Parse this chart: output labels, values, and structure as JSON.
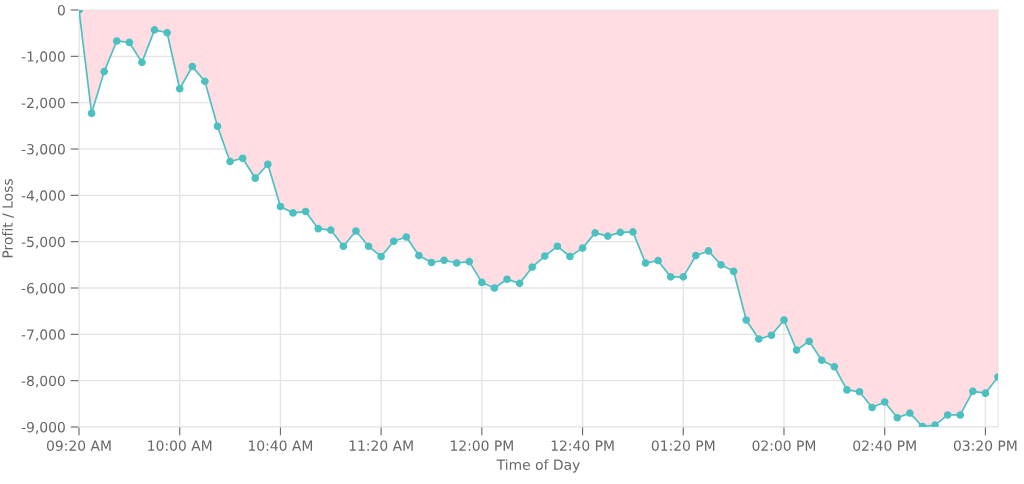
{
  "chart_data": {
    "type": "area",
    "xlabel": "Time of Day",
    "ylabel": "Profit / Loss",
    "x": [
      9.3333,
      9.4167,
      9.5,
      9.5833,
      9.6667,
      9.75,
      9.8333,
      9.9167,
      10,
      10.0833,
      10.1667,
      10.25,
      10.3333,
      10.4167,
      10.5,
      10.5833,
      10.6667,
      10.75,
      10.8333,
      10.9167,
      11,
      11.0833,
      11.1667,
      11.25,
      11.3333,
      11.4167,
      11.5,
      11.5833,
      11.6667,
      11.75,
      11.8333,
      11.9167,
      12,
      12.0833,
      12.1667,
      12.25,
      12.3333,
      12.4167,
      12.5,
      12.5833,
      12.6667,
      12.75,
      12.8333,
      12.9167,
      13,
      13.0833,
      13.1667,
      13.25,
      13.3333,
      13.4167,
      13.5,
      13.5833,
      13.6667,
      13.75,
      13.8333,
      13.9167,
      14,
      14.0833,
      14.1667,
      14.25,
      14.3333,
      14.4167,
      14.5,
      14.5833,
      14.6667,
      14.75,
      14.8333,
      14.9167,
      15,
      15.0833,
      15.1667,
      15.25,
      15.3333,
      15.4167
    ],
    "series": [
      {
        "color": "#4bc0c0",
        "values": [
          0,
          -2230,
          -1330,
          -670,
          -700,
          -1130,
          -430,
          -490,
          -1700,
          -1220,
          -1540,
          -2510,
          -3270,
          -3200,
          -3630,
          -3330,
          -4240,
          -4380,
          -4350,
          -4720,
          -4750,
          -5100,
          -4770,
          -5100,
          -5320,
          -4990,
          -4900,
          -5300,
          -5450,
          -5400,
          -5460,
          -5430,
          -5880,
          -6000,
          -5810,
          -5900,
          -5550,
          -5310,
          -5100,
          -5320,
          -5140,
          -4810,
          -4880,
          -4800,
          -4790,
          -5460,
          -5410,
          -5760,
          -5760,
          -5300,
          -5200,
          -5500,
          -5640,
          -6690,
          -7100,
          -7020,
          -6690,
          -7340,
          -7150,
          -7560,
          -7700,
          -8200,
          -8240,
          -8580,
          -8460,
          -8800,
          -8700,
          -8990,
          -8960,
          -8740,
          -8740,
          -8230,
          -8270,
          -7920
        ]
      }
    ],
    "xlim": [
      9.3333,
      15.4167
    ],
    "xticks": [
      {
        "value": 9.3333,
        "label": "09:20 AM"
      },
      {
        "value": 10,
        "label": "10:00 AM"
      },
      {
        "value": 10.6667,
        "label": "10:40 AM"
      },
      {
        "value": 11.3333,
        "label": "11:20 AM"
      },
      {
        "value": 12,
        "label": "12:00 PM"
      },
      {
        "value": 12.6667,
        "label": "12:40 PM"
      },
      {
        "value": 13.3333,
        "label": "01:20 PM"
      },
      {
        "value": 14,
        "label": "02:00 PM"
      },
      {
        "value": 14.6667,
        "label": "02:40 PM"
      },
      {
        "value": 15.3333,
        "label": "03:20 PM"
      }
    ],
    "ylim": [
      -9000,
      0
    ],
    "yticks": [
      0,
      {
        "value": -1000,
        "label": "-1,000"
      },
      {
        "value": -2000,
        "label": "-2,000"
      },
      {
        "value": -3000,
        "label": "-3,000"
      },
      {
        "value": -4000,
        "label": "-4,000"
      },
      {
        "value": -5000,
        "label": "-5,000"
      },
      {
        "value": -6000,
        "label": "-6,000"
      },
      {
        "value": -7000,
        "label": "-7,000"
      },
      {
        "value": -8000,
        "label": "-8,000"
      },
      {
        "value": -9000,
        "label": "-9,000"
      }
    ],
    "grid": true,
    "marker": "circle",
    "line_style": "solid"
  }
}
